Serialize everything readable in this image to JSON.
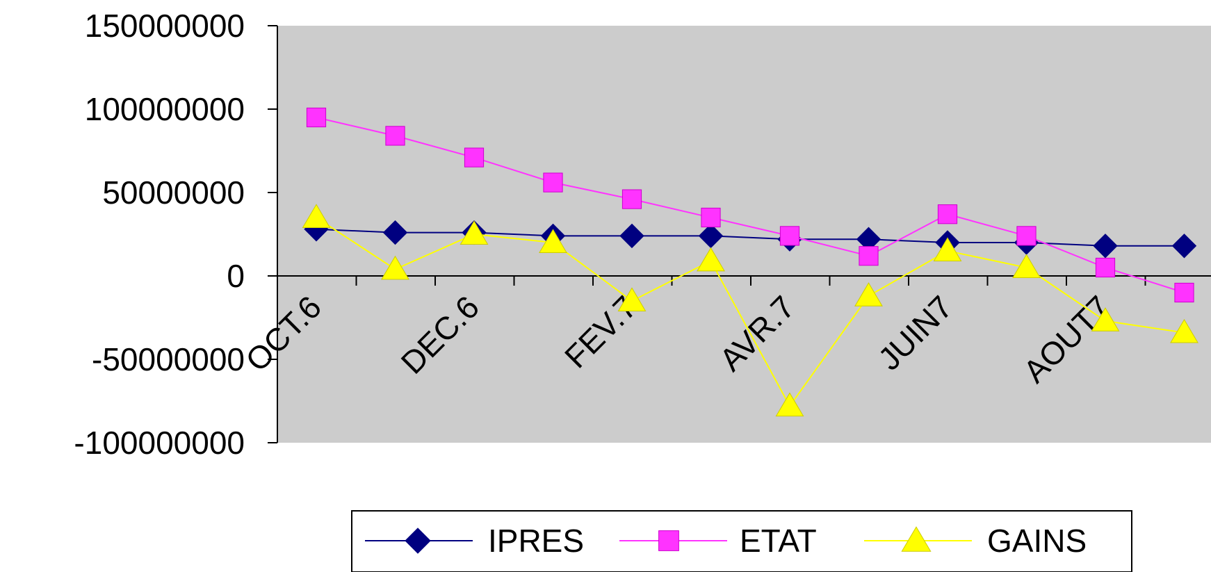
{
  "chart_data": {
    "type": "line",
    "title": "",
    "xlabel": "",
    "ylabel": "",
    "ylim": [
      -100000000,
      150000000
    ],
    "yticks": [
      "150000000",
      "100000000",
      "50000000",
      "0",
      "-50000000",
      "-100000000"
    ],
    "y_tick_values": [
      150000000,
      100000000,
      50000000,
      0,
      -50000000,
      -100000000
    ],
    "x_tick_labels": [
      {
        "label": "OCT.6",
        "index": 0
      },
      {
        "label": "DEC.6",
        "index": 2
      },
      {
        "label": "FEV.7",
        "index": 4
      },
      {
        "label": "AVR.7",
        "index": 6
      },
      {
        "label": "JUIN7",
        "index": 8
      },
      {
        "label": "AOUT7",
        "index": 10
      }
    ],
    "n_points": 12,
    "grid": false,
    "plot_background": "#cccccc",
    "legend_position": "bottom",
    "series": [
      {
        "name": "IPRES",
        "color": "#000080",
        "marker": "diamond",
        "values": [
          28000000,
          26000000,
          26000000,
          24000000,
          24000000,
          24000000,
          22000000,
          22000000,
          20000000,
          20000000,
          18000000,
          18000000
        ]
      },
      {
        "name": "ETAT",
        "color": "#ff33ff",
        "marker": "square",
        "values": [
          95000000,
          84000000,
          71000000,
          56000000,
          46000000,
          35000000,
          24000000,
          12000000,
          37000000,
          24000000,
          5000000,
          -10000000
        ]
      },
      {
        "name": "GAINS",
        "color": "#ffff00",
        "marker": "triangle",
        "values": [
          35000000,
          4000000,
          25000000,
          20000000,
          -15000000,
          9000000,
          -78000000,
          -12000000,
          15000000,
          5000000,
          -27000000,
          -34000000
        ]
      }
    ]
  }
}
